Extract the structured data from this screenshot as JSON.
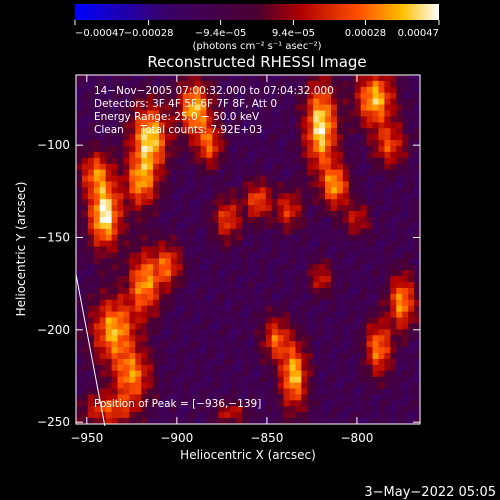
{
  "chart_data": {
    "type": "heatmap",
    "title": "Reconstructed RHESSI Image",
    "xlabel": "Heliocentric X (arcsec)",
    "ylabel": "Heliocentric Y (arcsec)",
    "xlim": [
      -956,
      -765
    ],
    "ylim": [
      -251,
      -62
    ],
    "xticks": [
      -950,
      -900,
      -850,
      -800
    ],
    "xtick_labels": [
      "−950",
      "−900",
      "−850",
      "−800"
    ],
    "yticks": [
      -100,
      -150,
      -200,
      -250
    ],
    "ytick_labels": [
      "−100",
      "−150",
      "−200",
      "−250"
    ],
    "colorbar": {
      "min": -0.00047,
      "max": 0.00047,
      "ticks": [
        -0.00047,
        -0.00028,
        -9.4e-05,
        9.4e-05,
        0.00028,
        0.00047
      ],
      "tick_labels": [
        "−0.00047",
        "−0.00028",
        "−9.4e−05",
        "9.4e−05",
        "0.00028",
        "0.00047"
      ],
      "unit_label": "(photons cm⁻² s⁻¹ asec⁻²)",
      "colormap": "rhessi-color-table-5"
    },
    "annotations": [
      "14−Nov−2005 07:00:32.000 to 07:04:32.000",
      "Detectors: 3F 4F 5F 6F 7F 8F, Att 0",
      "Energy Range: 25.0 − 50.0 keV",
      "Clean     Total counts: 7.92E+03"
    ],
    "peak_label": "Position of Peak = [−936,−139]",
    "peak": [
      -936,
      -139
    ],
    "limb_line": [
      [
        -956,
        -170
      ],
      [
        -940,
        -252
      ]
    ],
    "blobs": [
      {
        "x": -940,
        "y": -138,
        "intensity": 1.0,
        "sx": 6,
        "sy": 12
      },
      {
        "x": -945,
        "y": -115,
        "intensity": 0.6,
        "sx": 6,
        "sy": 8
      },
      {
        "x": -915,
        "y": -96,
        "intensity": 0.9,
        "sx": 7,
        "sy": 12
      },
      {
        "x": -920,
        "y": -120,
        "intensity": 0.7,
        "sx": 6,
        "sy": 10
      },
      {
        "x": -890,
        "y": -80,
        "intensity": 0.85,
        "sx": 6,
        "sy": 10
      },
      {
        "x": -882,
        "y": -100,
        "intensity": 0.6,
        "sx": 5,
        "sy": 8
      },
      {
        "x": -918,
        "y": -175,
        "intensity": 0.75,
        "sx": 6,
        "sy": 12
      },
      {
        "x": -905,
        "y": -165,
        "intensity": 0.6,
        "sx": 5,
        "sy": 8
      },
      {
        "x": -935,
        "y": -200,
        "intensity": 0.8,
        "sx": 8,
        "sy": 12
      },
      {
        "x": -925,
        "y": -225,
        "intensity": 0.7,
        "sx": 7,
        "sy": 10
      },
      {
        "x": -938,
        "y": -243,
        "intensity": 0.55,
        "sx": 10,
        "sy": 6
      },
      {
        "x": -872,
        "y": -140,
        "intensity": 0.55,
        "sx": 5,
        "sy": 8
      },
      {
        "x": -855,
        "y": -130,
        "intensity": 0.6,
        "sx": 5,
        "sy": 7
      },
      {
        "x": -838,
        "y": -135,
        "intensity": 0.5,
        "sx": 5,
        "sy": 7
      },
      {
        "x": -820,
        "y": -90,
        "intensity": 0.95,
        "sx": 6,
        "sy": 16
      },
      {
        "x": -812,
        "y": -122,
        "intensity": 0.75,
        "sx": 5,
        "sy": 8
      },
      {
        "x": -790,
        "y": -75,
        "intensity": 0.85,
        "sx": 7,
        "sy": 10
      },
      {
        "x": -782,
        "y": -100,
        "intensity": 0.55,
        "sx": 6,
        "sy": 8
      },
      {
        "x": -775,
        "y": -185,
        "intensity": 0.75,
        "sx": 5,
        "sy": 10
      },
      {
        "x": -788,
        "y": -210,
        "intensity": 0.7,
        "sx": 5,
        "sy": 10
      },
      {
        "x": -835,
        "y": -225,
        "intensity": 0.85,
        "sx": 5,
        "sy": 12
      },
      {
        "x": -845,
        "y": -205,
        "intensity": 0.6,
        "sx": 5,
        "sy": 8
      },
      {
        "x": -820,
        "y": -172,
        "intensity": 0.45,
        "sx": 4,
        "sy": 6
      },
      {
        "x": -870,
        "y": -245,
        "intensity": 0.4,
        "sx": 6,
        "sy": 4
      },
      {
        "x": -800,
        "y": -140,
        "intensity": 0.4,
        "sx": 5,
        "sy": 6
      }
    ]
  },
  "footer_date": "3−May−2022 05:05"
}
